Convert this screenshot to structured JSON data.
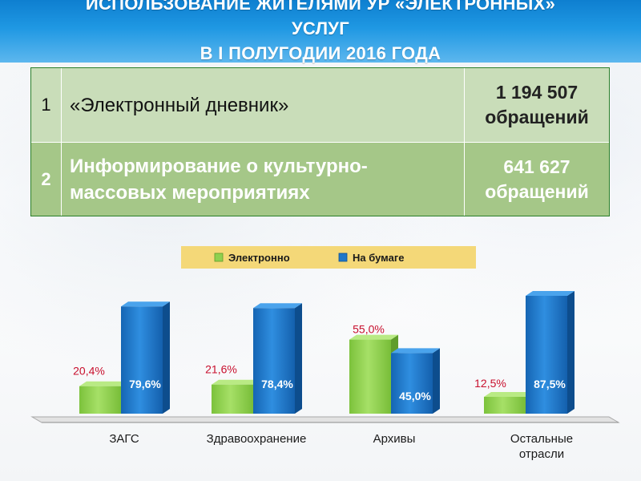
{
  "header": {
    "line1": "ИСПОЛЬЗОВАНИЕ ЖИТЕЛЯМИ УР «ЭЛЕКТРОННЫХ»",
    "line2": "УСЛУГ",
    "line3": "В I ПОЛУГОДИИ 2016 ГОДА"
  },
  "table": {
    "rows": [
      {
        "num": "1",
        "name": "«Электронный дневник»",
        "value_line1": "1 194 507",
        "value_line2": "обращений"
      },
      {
        "num": "2",
        "name_line1": "Информирование о культурно-",
        "name_line2": "массовых мероприятиях",
        "value_line1": "641 627",
        "value_line2": "обращений"
      }
    ]
  },
  "colors": {
    "green": "#8fd14f",
    "blue": "#1f77c9",
    "legend_bg": "#f4d878",
    "red_label": "#c8102e",
    "row1_bg": "#c9ddb9",
    "row2_bg": "#a5c788"
  },
  "chart_data": {
    "type": "bar",
    "categories": [
      "ЗАГС",
      "Здравоохранение",
      "Архивы",
      "Остальные отрасли"
    ],
    "category_labels": [
      [
        "ЗАГС"
      ],
      [
        "Здравоохранение"
      ],
      [
        "Архивы"
      ],
      [
        "Остальные",
        "отрасли"
      ]
    ],
    "series": [
      {
        "name": "Электронно",
        "values": [
          20.4,
          21.6,
          55.0,
          12.5
        ],
        "labels": [
          "20,4%",
          "21,6%",
          "55,0%",
          "12,5%"
        ]
      },
      {
        "name": "На бумаге",
        "values": [
          79.6,
          78.4,
          45.0,
          87.5
        ],
        "labels": [
          "79,6%",
          "78,4%",
          "45,0%",
          "87,5%"
        ]
      }
    ],
    "ylim": [
      0,
      100
    ],
    "grid": false,
    "legend_position": "top"
  }
}
